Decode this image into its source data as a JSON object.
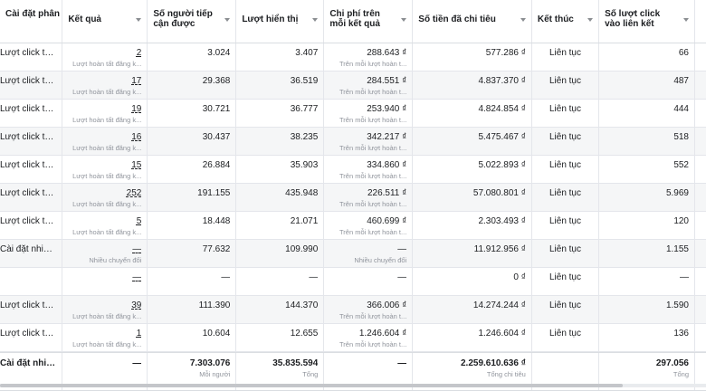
{
  "headers": [
    "Cài đặt phân bổ",
    "Kết quả",
    "Số người tiếp cận được",
    "Lượt hiển thị",
    "Chi phí trên mỗi kết quả",
    "Số tiền đã chi tiêu",
    "Kết thúc",
    "Số lượt click vào liên kết"
  ],
  "rows": [
    {
      "attr": "Lượt click tro...",
      "result": "2",
      "result_sub": "Lượt hoàn tất đăng k...",
      "reach": "3.024",
      "impr": "3.407",
      "cpr": "288.643 ₫",
      "cpr_sub": "Trên mỗi lượt hoàn t...",
      "spent": "577.286 ₫",
      "end": "Liên tục",
      "clicks": "66"
    },
    {
      "attr": "Lượt click tro...",
      "result": "17",
      "result_sub": "Lượt hoàn tất đăng k...",
      "reach": "29.368",
      "impr": "36.519",
      "cpr": "284.551 ₫",
      "cpr_sub": "Trên mỗi lượt hoàn t...",
      "spent": "4.837.370 ₫",
      "end": "Liên tục",
      "clicks": "487"
    },
    {
      "attr": "Lượt click tro...",
      "result": "19",
      "result_sub": "Lượt hoàn tất đăng k...",
      "reach": "30.721",
      "impr": "36.777",
      "cpr": "253.940 ₫",
      "cpr_sub": "Trên mỗi lượt hoàn t...",
      "spent": "4.824.854 ₫",
      "end": "Liên tục",
      "clicks": "444"
    },
    {
      "attr": "Lượt click tro...",
      "result": "16",
      "result_sub": "Lượt hoàn tất đăng k...",
      "reach": "30.437",
      "impr": "38.235",
      "cpr": "342.217 ₫",
      "cpr_sub": "Trên mỗi lượt hoàn t...",
      "spent": "5.475.467 ₫",
      "end": "Liên tục",
      "clicks": "518"
    },
    {
      "attr": "Lượt click tro...",
      "result": "15",
      "result_sub": "Lượt hoàn tất đăng k...",
      "reach": "26.884",
      "impr": "35.903",
      "cpr": "334.860 ₫",
      "cpr_sub": "Trên mỗi lượt hoàn t...",
      "spent": "5.022.893 ₫",
      "end": "Liên tục",
      "clicks": "552"
    },
    {
      "attr": "Lượt click tro...",
      "result": "252",
      "result_sub": "Lượt hoàn tất đăng k...",
      "reach": "191.155",
      "impr": "435.948",
      "cpr": "226.511 ₫",
      "cpr_sub": "Trên mỗi lượt hoàn t...",
      "spent": "57.080.801 ₫",
      "end": "Liên tục",
      "clicks": "5.969"
    },
    {
      "attr": "Lượt click tro...",
      "result": "5",
      "result_sub": "Lượt hoàn tất đăng k...",
      "reach": "18.448",
      "impr": "21.071",
      "cpr": "460.699 ₫",
      "cpr_sub": "Trên mỗi lượt hoàn t...",
      "spent": "2.303.493 ₫",
      "end": "Liên tục",
      "clicks": "120"
    },
    {
      "attr": "Cài đặt nhiều ...",
      "result": "—",
      "result_sub": "Nhiều chuyển đổi",
      "reach": "77.632",
      "impr": "109.990",
      "cpr": "—",
      "cpr_sub": "Nhiều chuyển đổi",
      "spent": "11.912.956 ₫",
      "end": "Liên tục",
      "clicks": "1.155"
    },
    {
      "attr": "",
      "result": "—",
      "result_sub": "",
      "reach": "—",
      "impr": "—",
      "cpr": "—",
      "cpr_sub": "",
      "spent": "0 ₫",
      "end": "Liên tục",
      "clicks": "—"
    },
    {
      "attr": "Lượt click tro...",
      "result": "39",
      "result_sub": "Lượt hoàn tất đăng k...",
      "reach": "111.390",
      "impr": "144.370",
      "cpr": "366.006 ₫",
      "cpr_sub": "Trên mỗi lượt hoàn t...",
      "spent": "14.274.244 ₫",
      "end": "Liên tục",
      "clicks": "1.590"
    },
    {
      "attr": "Lượt click tro...",
      "result": "1",
      "result_sub": "Lượt hoàn tất đăng k...",
      "reach": "10.604",
      "impr": "12.655",
      "cpr": "1.246.604 ₫",
      "cpr_sub": "Trên mỗi lượt hoàn t...",
      "spent": "1.246.604 ₫",
      "end": "Liên tục",
      "clicks": "136"
    }
  ],
  "total": {
    "attr": "Cài đặt nhiều t...",
    "result": "—",
    "reach": "7.303.076",
    "reach_sub": "Mỗi người",
    "impr": "35.835.594",
    "impr_sub": "Tổng",
    "cpr": "—",
    "spent": "2.259.610.636 ₫",
    "spent_sub": "Tổng chi tiêu",
    "clicks": "297.056",
    "clicks_sub": "Tổng"
  }
}
